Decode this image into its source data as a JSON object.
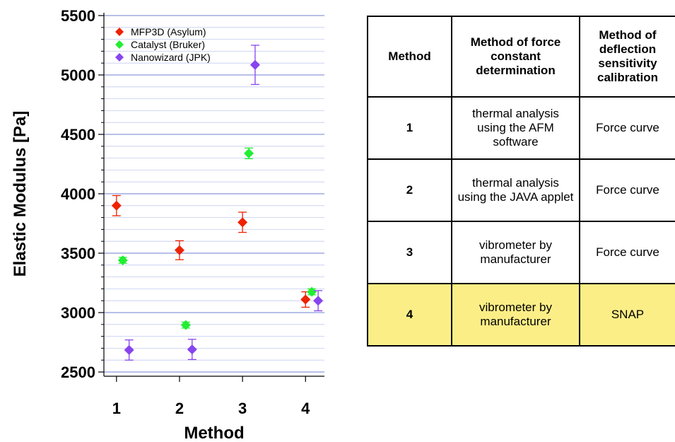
{
  "chart_data": {
    "type": "scatter",
    "xlabel": "Method",
    "ylabel": "Elastic Modulus [Pa]",
    "xticks": [
      "1",
      "2",
      "3",
      "4"
    ],
    "yticks": [
      2500,
      3000,
      3500,
      4000,
      4500,
      5000,
      5500
    ],
    "ylim": [
      2500,
      5500
    ],
    "xlim": [
      0.8,
      4.3
    ],
    "grid": true,
    "legend_position": "top-left",
    "series": [
      {
        "name": "MFP3D (Asylum)",
        "color": "#ee2200",
        "x": [
          1.0,
          2.0,
          3.0,
          4.0
        ],
        "y": [
          3900,
          3525,
          3760,
          3110
        ],
        "err": [
          85,
          80,
          85,
          65
        ]
      },
      {
        "name": "Catalyst (Bruker)",
        "color": "#22ee33",
        "x": [
          1.1,
          2.1,
          3.1,
          4.1
        ],
        "y": [
          3440,
          2895,
          4340,
          3175
        ],
        "err": [
          25,
          25,
          45,
          25
        ]
      },
      {
        "name": "Nanowizard (JPK)",
        "color": "#8844ee",
        "x": [
          1.2,
          2.2,
          3.2,
          4.2
        ],
        "y": [
          2685,
          2690,
          5085,
          3100
        ],
        "err": [
          85,
          85,
          165,
          85
        ]
      }
    ]
  },
  "table": {
    "headers": [
      "Method",
      "Method of force constant determination",
      "Method of deflection sensitivity calibration"
    ],
    "rows": [
      {
        "method": "1",
        "force": "thermal analysis using the AFM software",
        "deflection": "Force curve"
      },
      {
        "method": "2",
        "force": "thermal analysis using the JAVA applet",
        "deflection": "Force curve"
      },
      {
        "method": "3",
        "force": "vibrometer by manufacturer",
        "deflection": "Force curve"
      },
      {
        "method": "4",
        "force": "vibrometer by manufacturer",
        "deflection": "SNAP"
      }
    ],
    "highlight_row": 4,
    "highlight_color": "#fcee86"
  }
}
